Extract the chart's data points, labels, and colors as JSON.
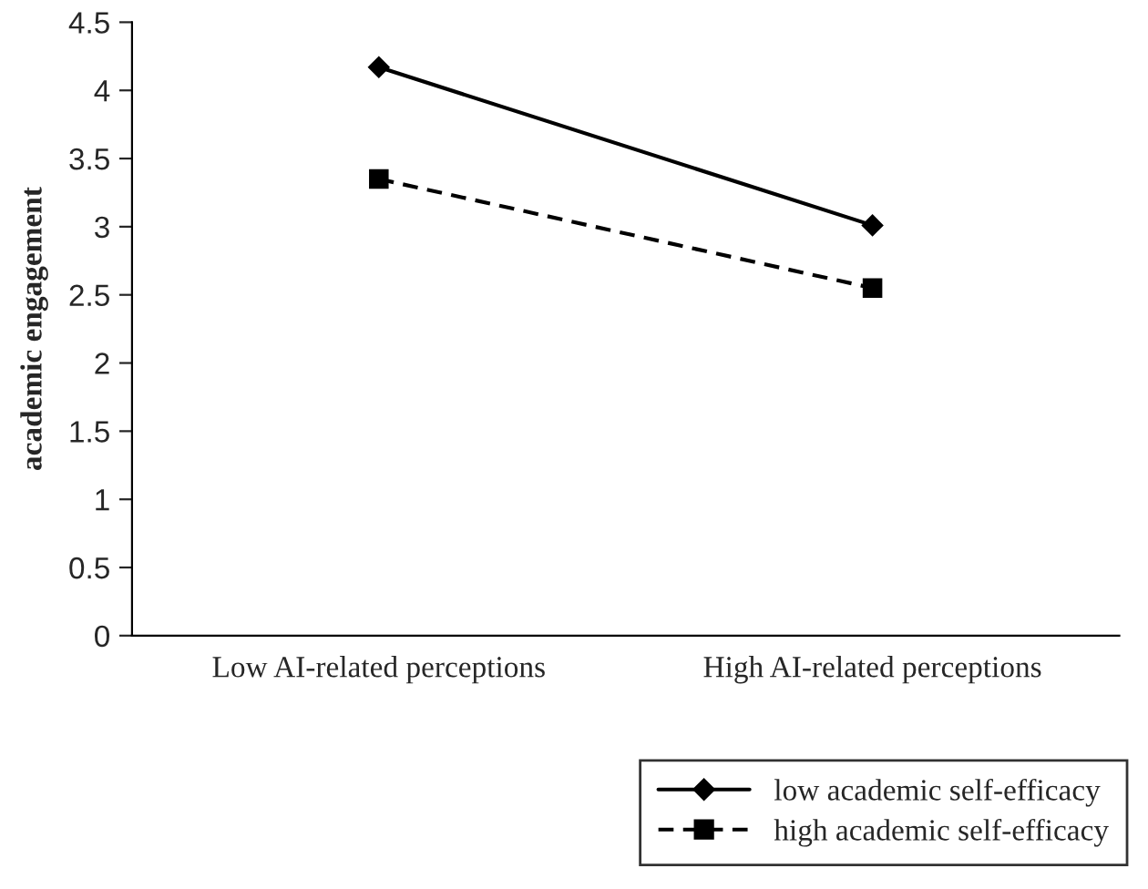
{
  "chart_data": {
    "type": "line",
    "ylabel": "academic engagement",
    "categories": [
      "Low AI-related perceptions",
      "High AI-related perceptions"
    ],
    "series": [
      {
        "name": "low academic self-efficacy",
        "color": "#000000",
        "values": [
          4.17,
          3.01
        ],
        "marker": "diamond",
        "line_style": "solid"
      },
      {
        "name": "high academic self-efficacy",
        "color": "#000000",
        "values": [
          3.35,
          2.55
        ],
        "marker": "square",
        "line_style": "dashed"
      }
    ],
    "ylim": [
      0,
      4.5
    ],
    "yticks": [
      0,
      0.5,
      1,
      1.5,
      2,
      2.5,
      3,
      3.5,
      4,
      4.5
    ],
    "grid": false,
    "legend": "bottom right"
  }
}
